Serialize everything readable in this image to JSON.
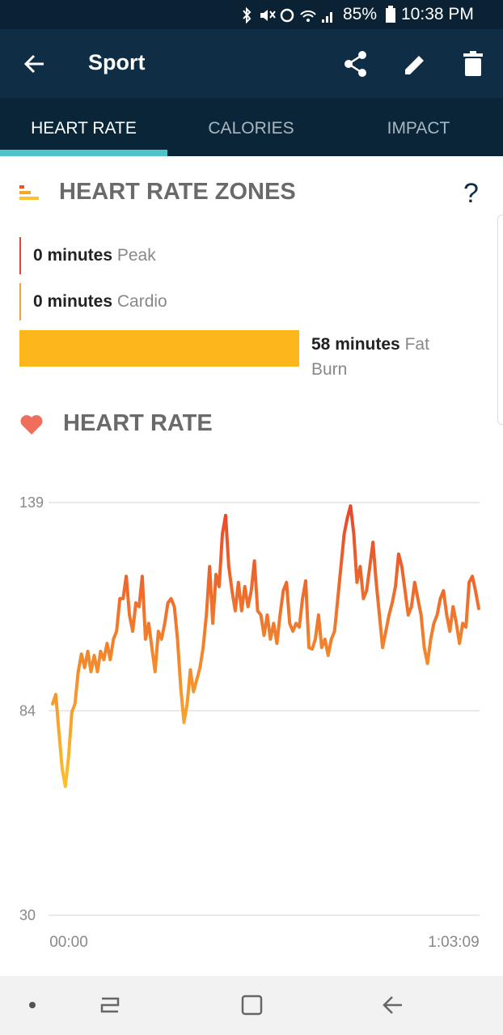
{
  "status_bar": {
    "battery": "85%",
    "time": "10:38 PM"
  },
  "app_bar": {
    "title": "Sport"
  },
  "tabs": [
    "HEART RATE",
    "CALORIES",
    "IMPACT"
  ],
  "zones": {
    "title": "HEART RATE ZONES",
    "help": "?",
    "items": [
      {
        "amount": "0 minutes",
        "name": "Peak",
        "color": "#e0463a"
      },
      {
        "amount": "0 minutes",
        "name": "Cardio",
        "color": "#f0a23c"
      },
      {
        "amount": "58 minutes",
        "name": "Fat Burn",
        "color": "#fdb61c"
      }
    ]
  },
  "chart_data": {
    "type": "line",
    "title": "HEART RATE",
    "x_labels": [
      "00:00",
      "1:03:09"
    ],
    "values": [
      85.8,
      88.3,
      78.3,
      68.7,
      64.0,
      71.9,
      83.6,
      85.8,
      94.3,
      99.0,
      95.4,
      99.7,
      94.3,
      98.6,
      94.3,
      99.7,
      97.5,
      101.8,
      97.5,
      102.9,
      105.0,
      113.6,
      113.6,
      119.5,
      109.3,
      105.0,
      112.5,
      111.5,
      119.5,
      102.9,
      107.1,
      100.7,
      94.3,
      105.0,
      102.9,
      107.1,
      112.5,
      113.6,
      111.5,
      102.9,
      90.1,
      80.9,
      85.8,
      94.8,
      89.0,
      92.2,
      95.4,
      100.7,
      109.3,
      122.1,
      107.1,
      120.0,
      116.8,
      130.7,
      135.6,
      122.1,
      115.7,
      110.4,
      117.9,
      110.4,
      116.8,
      111.5,
      115.7,
      123.6,
      110.4,
      109.3,
      103.9,
      109.3,
      102.9,
      107.1,
      101.8,
      109.3,
      115.7,
      117.9,
      107.1,
      105.0,
      107.1,
      106.1,
      113.6,
      118.3,
      100.7,
      100.3,
      102.9,
      109.3,
      100.7,
      102.9,
      98.6,
      102.9,
      105.0,
      113.6,
      122.1,
      130.7,
      134.9,
      138.1,
      130.7,
      117.9,
      122.1,
      113.6,
      115.7,
      122.1,
      128.5,
      117.9,
      109.3,
      100.7,
      105.0,
      109.3,
      112.5,
      116.8,
      125.4,
      122.1,
      115.7,
      109.3,
      111.5,
      117.9,
      113.6,
      109.3,
      100.7,
      96.5,
      102.9,
      107.1,
      109.3,
      113.6,
      115.7,
      109.3,
      105.0,
      111.5,
      107.1,
      101.8,
      107.1,
      106.1,
      117.9,
      119.5,
      115.7,
      111.0
    ],
    "ylim": [
      30,
      139
    ],
    "yticks": [
      30,
      84,
      139
    ],
    "grid": true,
    "gradient": [
      "#e8452b",
      "#fcc22c"
    ]
  }
}
